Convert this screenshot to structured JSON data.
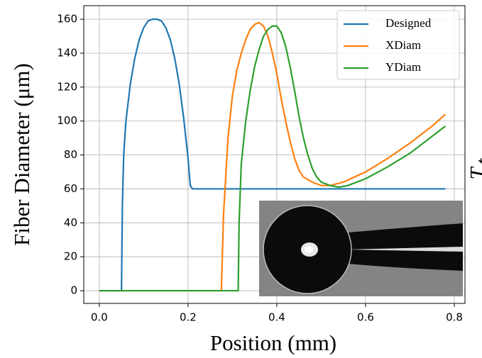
{
  "chart_data": {
    "type": "line",
    "xlabel": "Position (mm)",
    "ylabel": "Fiber Diameter (μm)",
    "annotations": [
      "T",
      "t"
    ],
    "xlim": [
      -0.035,
      0.824
    ],
    "ylim": [
      -7.5,
      168
    ],
    "xticks": [
      {
        "value": 0,
        "label": "0.0"
      },
      0.2,
      0.4,
      0.6,
      0.8
    ],
    "yticks": [
      0,
      20,
      40,
      60,
      80,
      100,
      120,
      140,
      160
    ],
    "grid": true,
    "legend": "upper right",
    "series": [
      {
        "name": "Designed",
        "color": "#1f77b4",
        "x": [
          0.0,
          0.05,
          0.052,
          0.055,
          0.06,
          0.07,
          0.08,
          0.09,
          0.1,
          0.11,
          0.12,
          0.13,
          0.14,
          0.15,
          0.16,
          0.17,
          0.18,
          0.19,
          0.2,
          0.205,
          0.21,
          0.78
        ],
        "values": [
          0,
          0,
          50,
          80,
          100,
          122,
          137,
          148,
          155,
          159,
          160,
          160,
          159,
          155,
          148,
          137,
          122,
          102,
          78,
          62,
          60,
          60
        ]
      },
      {
        "name": "XDiam",
        "color": "#ff7f0e",
        "x": [
          0.0,
          0.275,
          0.28,
          0.29,
          0.3,
          0.31,
          0.32,
          0.33,
          0.34,
          0.35,
          0.36,
          0.37,
          0.38,
          0.39,
          0.4,
          0.41,
          0.42,
          0.43,
          0.44,
          0.45,
          0.46,
          0.48,
          0.5,
          0.52,
          0.55,
          0.6,
          0.65,
          0.7,
          0.75,
          0.78
        ],
        "values": [
          0,
          0,
          45,
          90,
          115,
          130,
          140,
          148,
          154,
          157,
          158,
          156,
          150,
          140,
          128,
          113,
          100,
          88,
          78,
          71,
          67,
          64,
          62,
          62,
          64,
          70,
          78,
          87,
          97,
          104
        ]
      },
      {
        "name": "YDiam",
        "color": "#2ca02c",
        "x": [
          0.0,
          0.313,
          0.315,
          0.32,
          0.33,
          0.34,
          0.35,
          0.36,
          0.37,
          0.38,
          0.39,
          0.4,
          0.41,
          0.42,
          0.43,
          0.44,
          0.45,
          0.46,
          0.47,
          0.48,
          0.49,
          0.5,
          0.52,
          0.54,
          0.56,
          0.6,
          0.65,
          0.7,
          0.75,
          0.78
        ],
        "values": [
          0,
          0,
          40,
          75,
          100,
          118,
          132,
          142,
          150,
          154,
          156,
          156,
          152,
          144,
          132,
          118,
          103,
          90,
          80,
          72,
          67,
          64,
          62,
          61,
          62,
          66,
          73,
          81,
          91,
          97
        ]
      }
    ]
  }
}
